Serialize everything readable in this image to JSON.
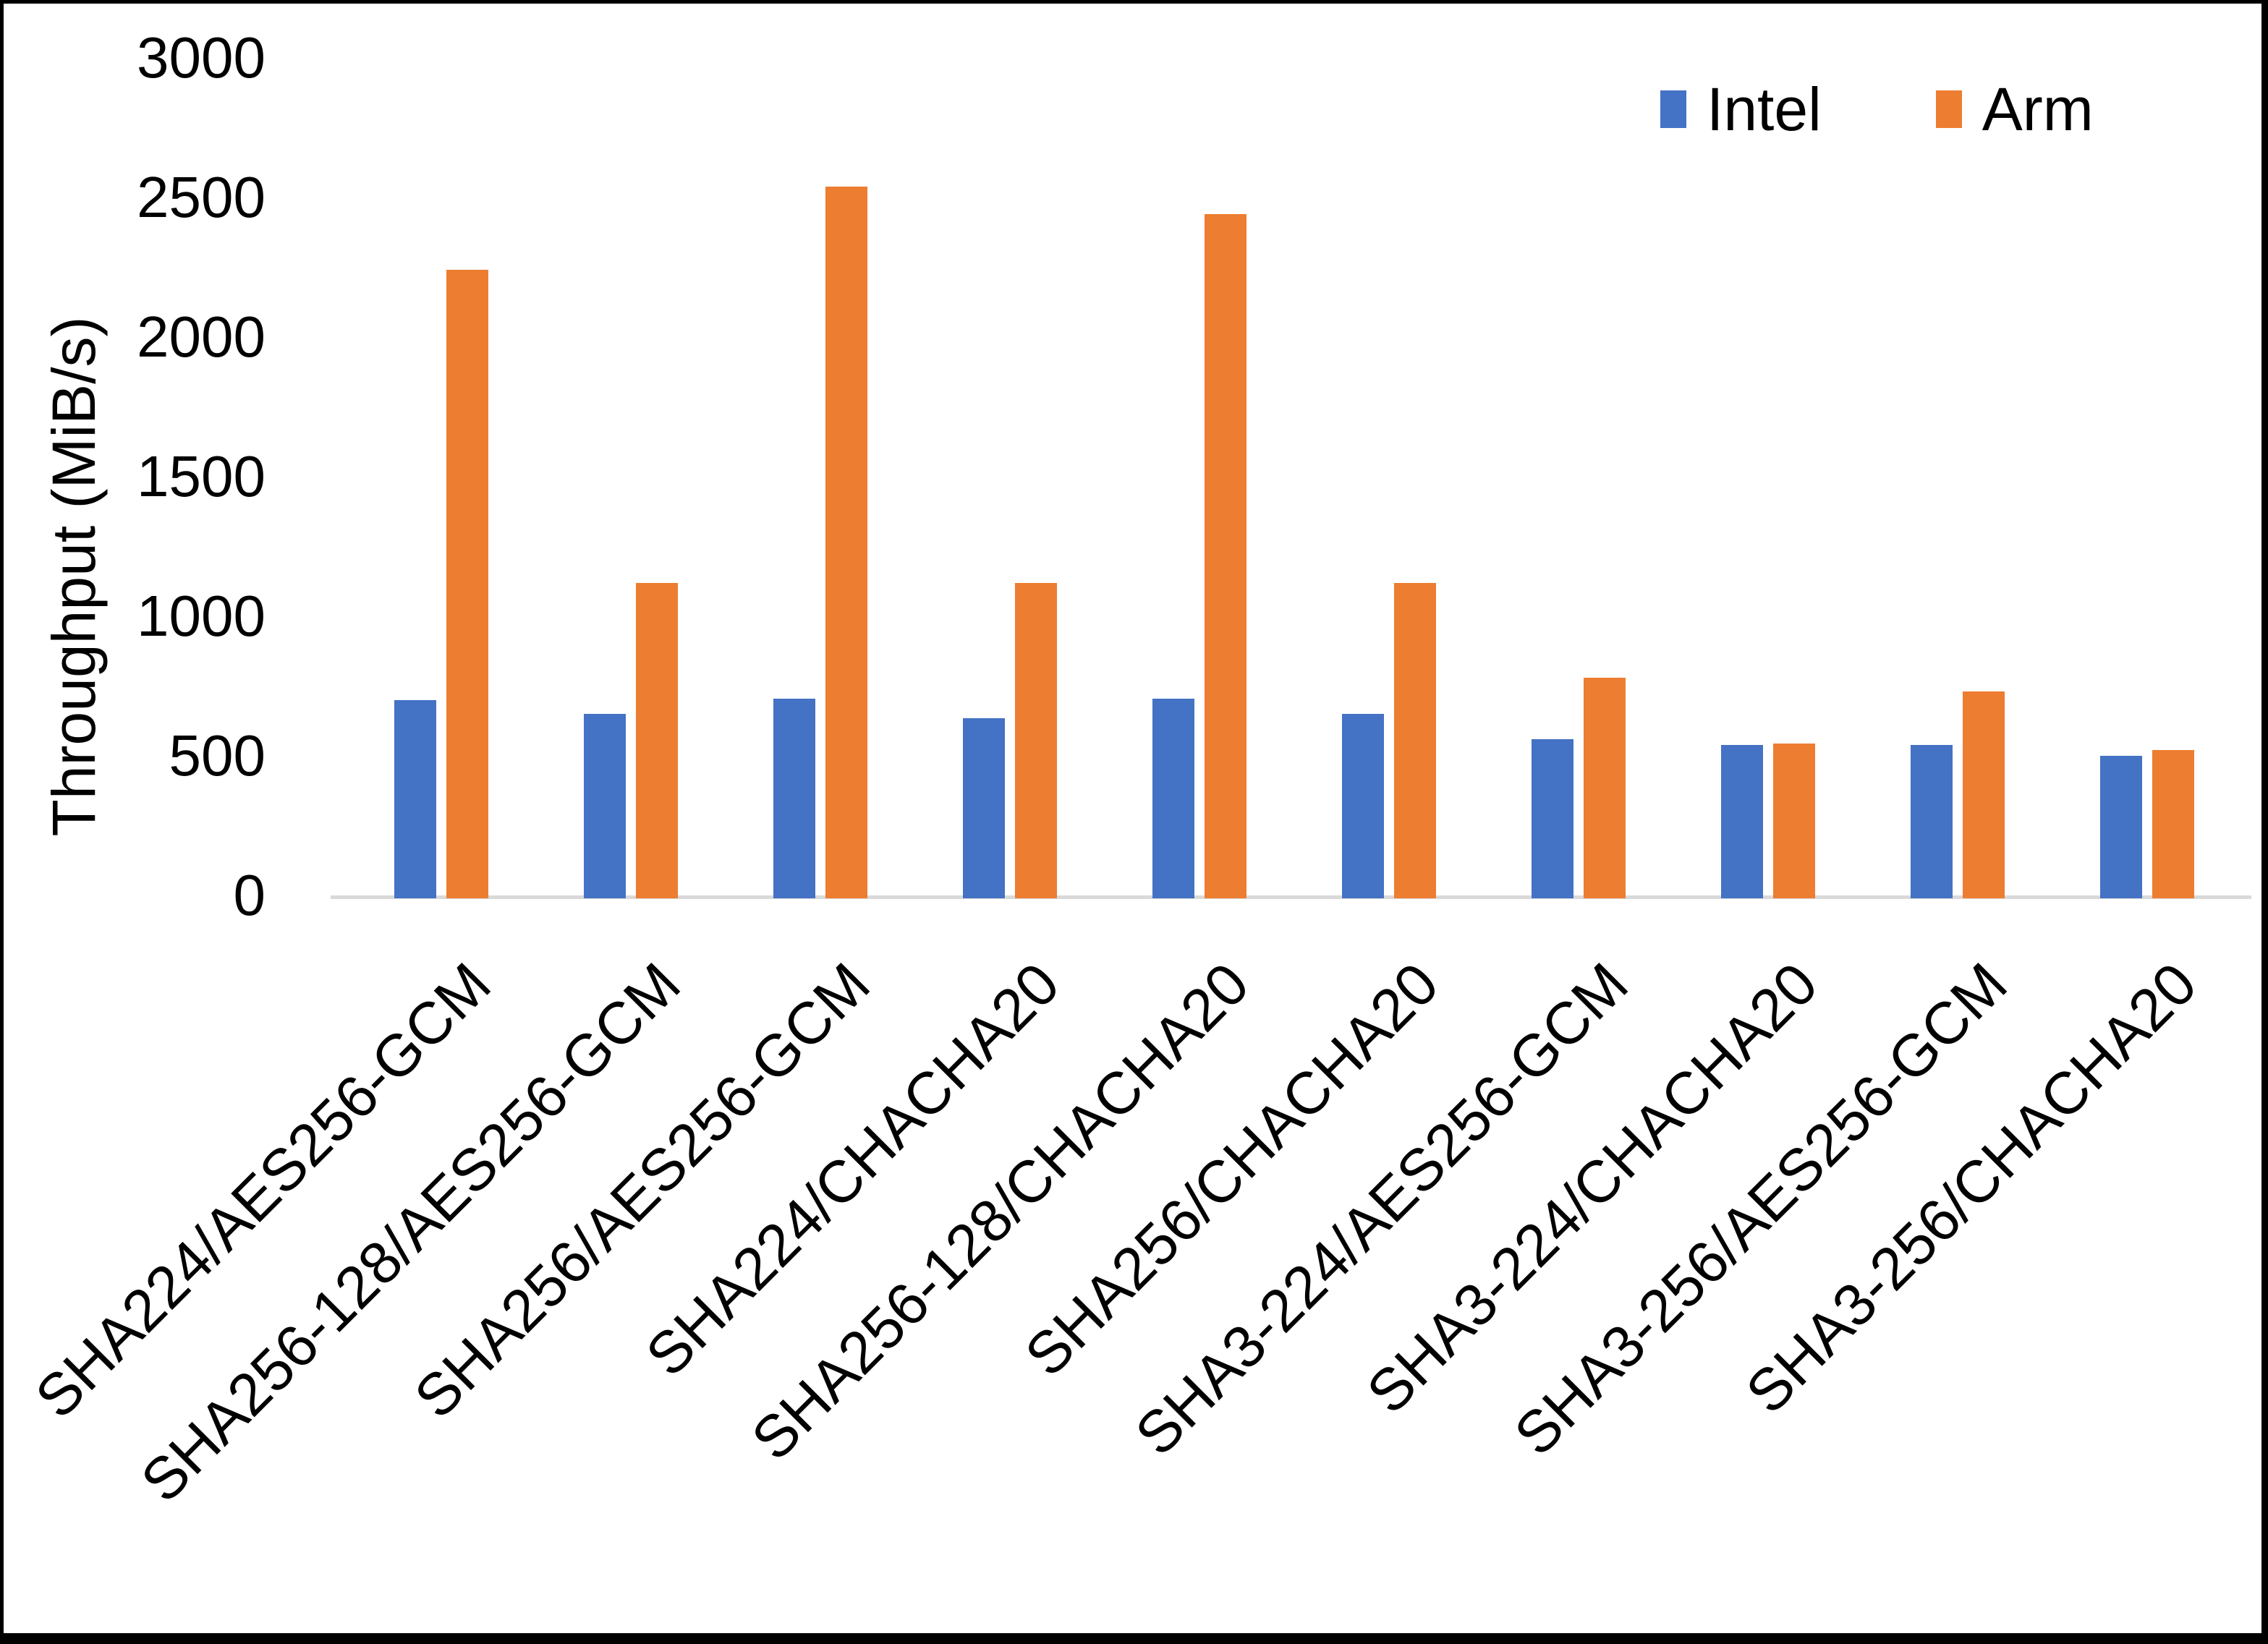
{
  "chart_data": {
    "type": "bar",
    "title": "",
    "xlabel": "",
    "ylabel": "Throughput (MiB/s)",
    "ylim": [
      0,
      3000
    ],
    "yticks": [
      0,
      500,
      1000,
      1500,
      2000,
      2500,
      3000
    ],
    "grid": false,
    "legend_position": "top-right",
    "categories": [
      "SHA224/AES256-GCM",
      "SHA256-128/AES256-GCM",
      "SHA256/AES256-GCM",
      "SHA224/CHACHA20",
      "SHA256-128/CHACHA20",
      "SHA256/CHACHA20",
      "SHA3-224/AES256-GCM",
      "SHA3-224/CHACHA20",
      "SHA3-256/AES256-GCM",
      "SHA3-256/CHACHA20"
    ],
    "series": [
      {
        "name": "Intel",
        "color": "#4472C4",
        "values": [
          710,
          660,
          715,
          645,
          715,
          660,
          570,
          550,
          550,
          510
        ]
      },
      {
        "name": "Arm",
        "color": "#ED7D31",
        "values": [
          2250,
          1130,
          2550,
          1130,
          2450,
          1130,
          790,
          555,
          740,
          530
        ]
      }
    ]
  },
  "colors": {
    "background": "#FFFFFF",
    "frame_border": "#000000",
    "axis_line": "#D9D9D9",
    "text": "#000000"
  }
}
